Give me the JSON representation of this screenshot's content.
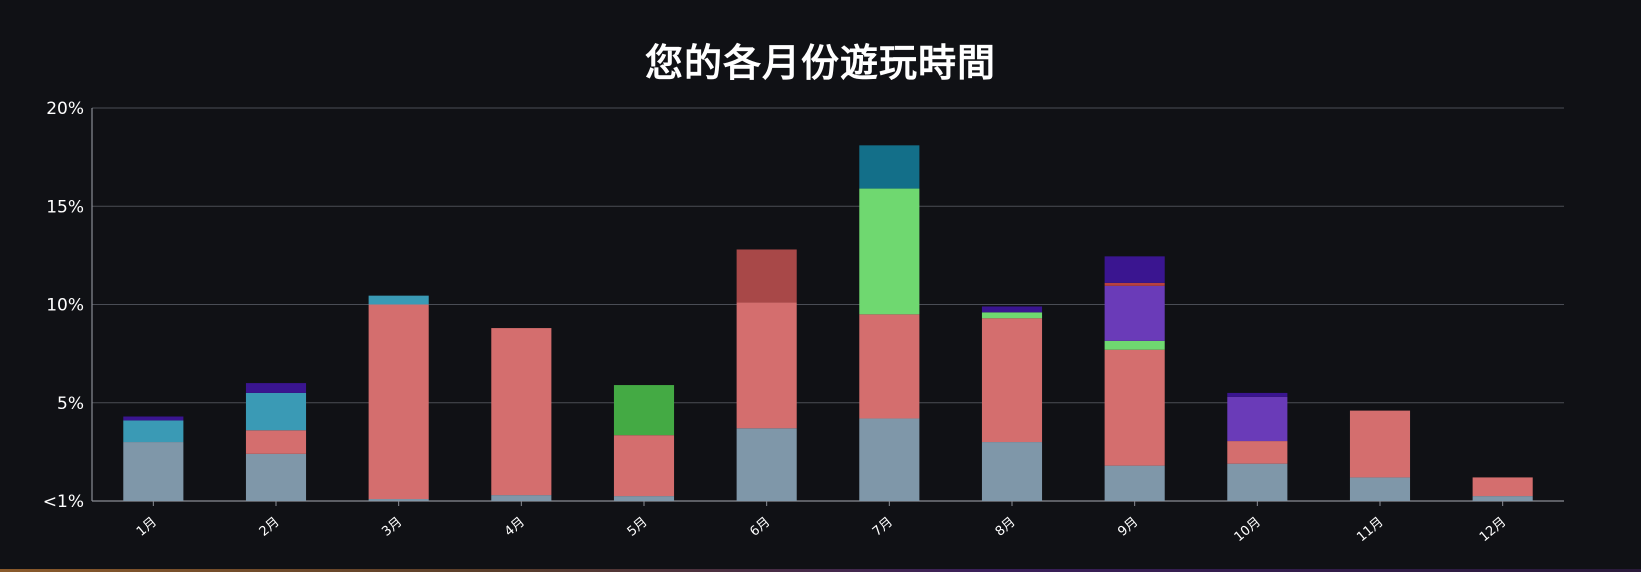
{
  "chart_data": {
    "type": "bar",
    "stacked": true,
    "title": "您的各月份遊玩時間",
    "categories": [
      "1月",
      "2月",
      "3月",
      "4月",
      "5月",
      "6月",
      "7月",
      "8月",
      "9月",
      "10月",
      "11月",
      "12月"
    ],
    "y_ticks": [
      "<1%",
      "5%",
      "10%",
      "15%",
      "20%"
    ],
    "ylim": [
      0,
      20
    ],
    "grid": true,
    "series": [
      {
        "color": "#7f97a9",
        "values": [
          3.0,
          2.4,
          0.1,
          0.3,
          0.25,
          3.7,
          4.2,
          3.0,
          1.8,
          1.9,
          1.2,
          0.25
        ]
      },
      {
        "color": "#d46e6e",
        "values": [
          0,
          1.2,
          9.9,
          8.5,
          3.1,
          6.4,
          5.3,
          6.3,
          5.9,
          1.15,
          3.4,
          0.95
        ]
      },
      {
        "color": "#3a9ab5",
        "values": [
          1.1,
          1.9,
          0.45,
          0,
          0,
          0,
          0,
          0,
          0,
          0,
          0,
          0
        ]
      },
      {
        "color": "#44aa44",
        "values": [
          0,
          0,
          0,
          0,
          2.55,
          0,
          0,
          0,
          0,
          0,
          0,
          0
        ]
      },
      {
        "color": "#a84848",
        "values": [
          0,
          0,
          0,
          0,
          0,
          2.7,
          0,
          0,
          0,
          0,
          0,
          0
        ]
      },
      {
        "color": "#6fd870",
        "values": [
          0,
          0,
          0,
          0,
          0,
          0,
          6.4,
          0.3,
          0.45,
          0,
          0,
          0
        ]
      },
      {
        "color": "#136f89",
        "values": [
          0,
          0,
          0,
          0,
          0,
          0,
          2.2,
          0,
          0,
          0,
          0,
          0
        ]
      },
      {
        "color": "#6a3bb8",
        "values": [
          0,
          0,
          0,
          0,
          0,
          0,
          0,
          0,
          2.8,
          2.25,
          0,
          0
        ]
      },
      {
        "color": "#b84040",
        "values": [
          0,
          0,
          0,
          0,
          0,
          0,
          0,
          0,
          0.15,
          0,
          0,
          0
        ]
      },
      {
        "color": "#3a1590",
        "values": [
          0.2,
          0.5,
          0,
          0,
          0,
          0,
          0,
          0.3,
          1.35,
          0.2,
          0,
          0
        ]
      }
    ],
    "colors": {
      "background": "#101115",
      "grid": "#4a4d55",
      "axis": "#8a8d95",
      "text": "#ffffff"
    }
  }
}
